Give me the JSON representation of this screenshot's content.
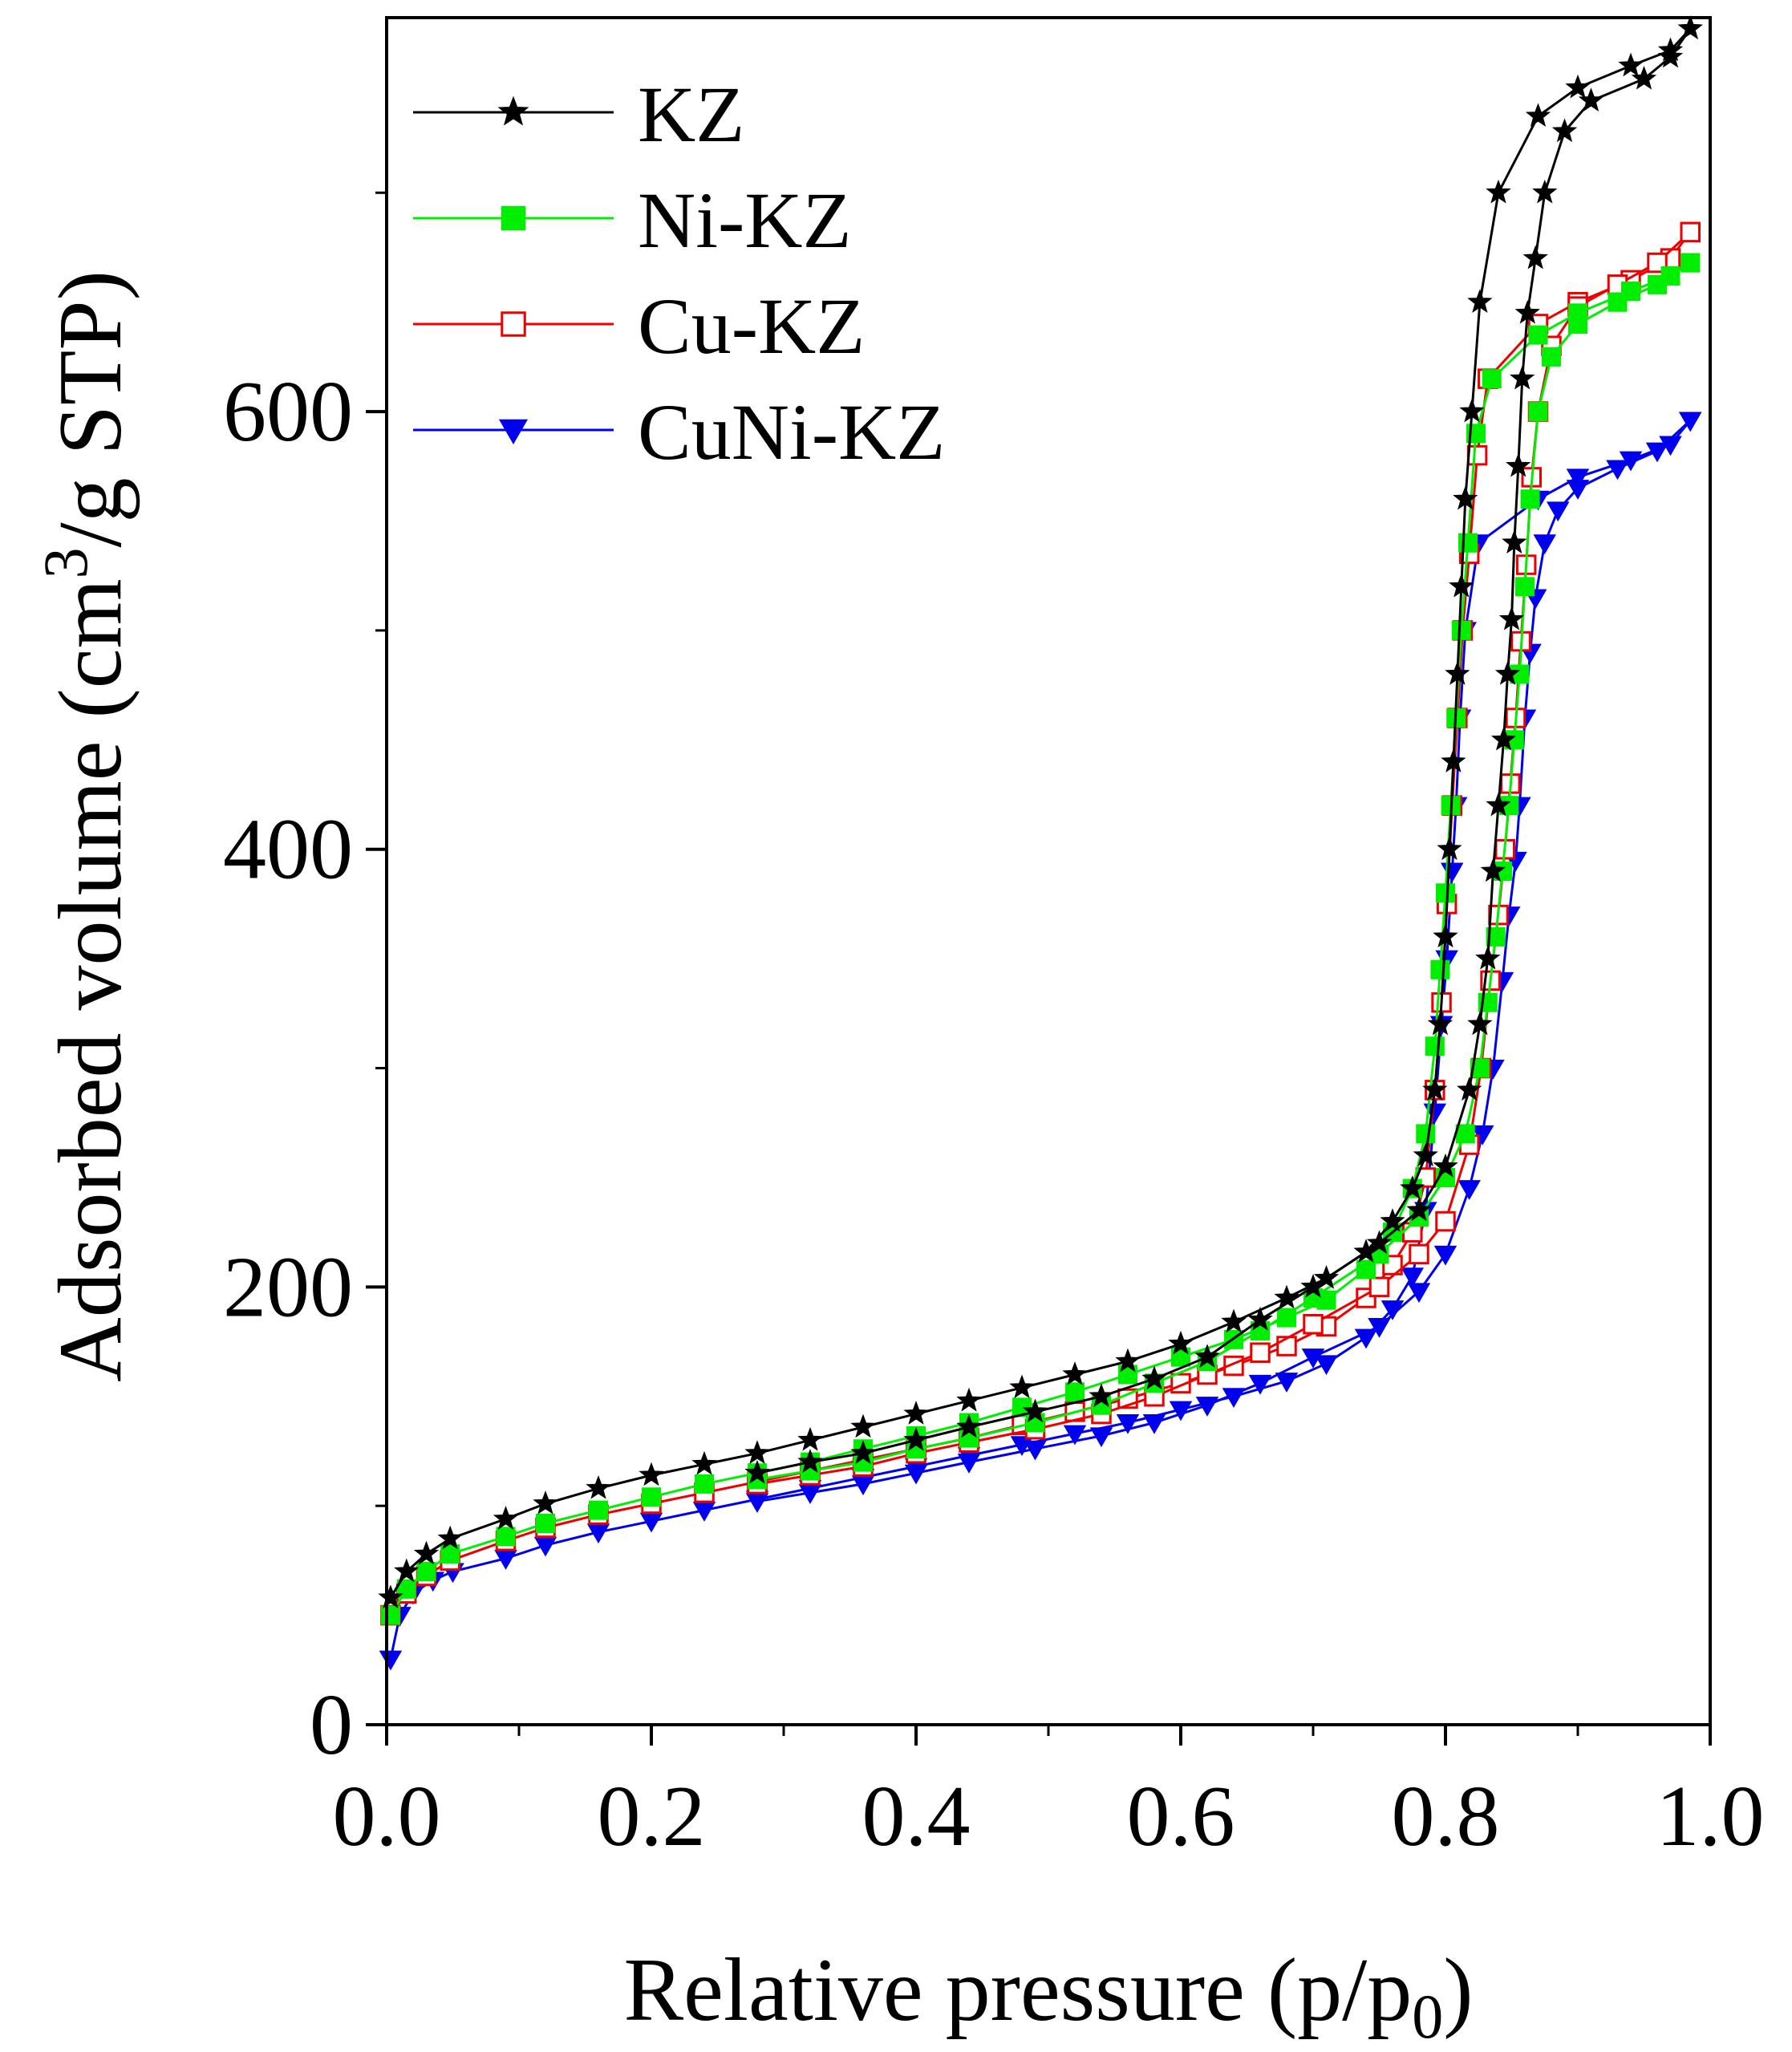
{
  "chart_data": {
    "type": "line",
    "title": "",
    "xlabel": {
      "main": "Relative pressure (p/p",
      "sub": "0",
      "end": ")"
    },
    "ylabel": {
      "main": "Adsorbed volume (cm",
      "sup": "3",
      "end": "/g STP)"
    },
    "xlim": [
      0.0,
      1.0
    ],
    "ylim": [
      0,
      780
    ],
    "x_ticks": [
      "0.0",
      "0.2",
      "0.4",
      "0.6",
      "0.8",
      "1.0"
    ],
    "y_ticks": [
      "0",
      "200",
      "400",
      "600"
    ],
    "legend_position": "top-left",
    "series": [
      {
        "name": "KZ",
        "color": "#000000",
        "marker": "star",
        "adsorption": [
          [
            0.003,
            58
          ],
          [
            0.015,
            70
          ],
          [
            0.03,
            78
          ],
          [
            0.048,
            85
          ],
          [
            0.09,
            94
          ],
          [
            0.12,
            101
          ],
          [
            0.16,
            108
          ],
          [
            0.2,
            114
          ],
          [
            0.24,
            119
          ],
          [
            0.28,
            124
          ],
          [
            0.32,
            130
          ],
          [
            0.36,
            136
          ],
          [
            0.4,
            142
          ],
          [
            0.44,
            148
          ],
          [
            0.48,
            154
          ],
          [
            0.52,
            160
          ],
          [
            0.56,
            166
          ],
          [
            0.6,
            174
          ],
          [
            0.64,
            184
          ],
          [
            0.68,
            195
          ],
          [
            0.71,
            204
          ],
          [
            0.74,
            216
          ],
          [
            0.76,
            230
          ],
          [
            0.775,
            245
          ],
          [
            0.785,
            260
          ],
          [
            0.792,
            290
          ],
          [
            0.796,
            320
          ],
          [
            0.8,
            360
          ],
          [
            0.803,
            400
          ],
          [
            0.806,
            440
          ],
          [
            0.809,
            480
          ],
          [
            0.812,
            520
          ],
          [
            0.815,
            560
          ],
          [
            0.82,
            600
          ],
          [
            0.826,
            650
          ],
          [
            0.84,
            700
          ],
          [
            0.87,
            735
          ],
          [
            0.9,
            748
          ],
          [
            0.94,
            758
          ],
          [
            0.97,
            765
          ],
          [
            0.985,
            775
          ]
        ],
        "desorption": [
          [
            0.985,
            775
          ],
          [
            0.97,
            762
          ],
          [
            0.95,
            752
          ],
          [
            0.91,
            742
          ],
          [
            0.89,
            728
          ],
          [
            0.875,
            700
          ],
          [
            0.868,
            670
          ],
          [
            0.862,
            645
          ],
          [
            0.858,
            615
          ],
          [
            0.855,
            575
          ],
          [
            0.852,
            540
          ],
          [
            0.85,
            505
          ],
          [
            0.847,
            480
          ],
          [
            0.844,
            450
          ],
          [
            0.84,
            420
          ],
          [
            0.836,
            390
          ],
          [
            0.832,
            350
          ],
          [
            0.826,
            320
          ],
          [
            0.818,
            290
          ],
          [
            0.8,
            255
          ],
          [
            0.78,
            235
          ],
          [
            0.75,
            220
          ],
          [
            0.7,
            200
          ],
          [
            0.66,
            185
          ],
          [
            0.62,
            168
          ],
          [
            0.58,
            158
          ],
          [
            0.54,
            150
          ],
          [
            0.49,
            143
          ],
          [
            0.44,
            136
          ],
          [
            0.4,
            130
          ],
          [
            0.36,
            124
          ],
          [
            0.32,
            120
          ],
          [
            0.28,
            115
          ]
        ]
      },
      {
        "name": "Ni-KZ",
        "color": "#00ee00",
        "marker": "square-filled",
        "adsorption": [
          [
            0.003,
            50
          ],
          [
            0.015,
            62
          ],
          [
            0.03,
            70
          ],
          [
            0.048,
            78
          ],
          [
            0.09,
            86
          ],
          [
            0.12,
            92
          ],
          [
            0.16,
            98
          ],
          [
            0.2,
            104
          ],
          [
            0.24,
            110
          ],
          [
            0.28,
            115
          ],
          [
            0.32,
            120
          ],
          [
            0.36,
            126
          ],
          [
            0.4,
            132
          ],
          [
            0.44,
            138
          ],
          [
            0.48,
            145
          ],
          [
            0.52,
            152
          ],
          [
            0.56,
            160
          ],
          [
            0.6,
            168
          ],
          [
            0.64,
            176
          ],
          [
            0.68,
            186
          ],
          [
            0.71,
            194
          ],
          [
            0.74,
            208
          ],
          [
            0.76,
            225
          ],
          [
            0.775,
            245
          ],
          [
            0.785,
            270
          ],
          [
            0.792,
            310
          ],
          [
            0.796,
            345
          ],
          [
            0.8,
            380
          ],
          [
            0.804,
            420
          ],
          [
            0.808,
            460
          ],
          [
            0.812,
            500
          ],
          [
            0.817,
            540
          ],
          [
            0.823,
            590
          ],
          [
            0.835,
            615
          ],
          [
            0.87,
            635
          ],
          [
            0.9,
            645
          ],
          [
            0.94,
            655
          ],
          [
            0.97,
            662
          ],
          [
            0.985,
            668
          ]
        ],
        "desorption": [
          [
            0.985,
            668
          ],
          [
            0.96,
            658
          ],
          [
            0.93,
            650
          ],
          [
            0.9,
            640
          ],
          [
            0.88,
            625
          ],
          [
            0.87,
            600
          ],
          [
            0.864,
            560
          ],
          [
            0.86,
            520
          ],
          [
            0.856,
            480
          ],
          [
            0.852,
            450
          ],
          [
            0.848,
            420
          ],
          [
            0.843,
            390
          ],
          [
            0.838,
            360
          ],
          [
            0.832,
            330
          ],
          [
            0.826,
            300
          ],
          [
            0.815,
            270
          ],
          [
            0.8,
            250
          ],
          [
            0.78,
            232
          ],
          [
            0.75,
            215
          ],
          [
            0.7,
            195
          ],
          [
            0.66,
            180
          ],
          [
            0.62,
            166
          ],
          [
            0.58,
            156
          ],
          [
            0.54,
            146
          ],
          [
            0.49,
            138
          ],
          [
            0.44,
            131
          ],
          [
            0.4,
            126
          ],
          [
            0.36,
            120
          ],
          [
            0.32,
            116
          ],
          [
            0.28,
            112
          ]
        ]
      },
      {
        "name": "Cu-KZ",
        "color": "#ee0000",
        "marker": "square-open",
        "adsorption": [
          [
            0.003,
            50
          ],
          [
            0.015,
            60
          ],
          [
            0.03,
            68
          ],
          [
            0.048,
            75
          ],
          [
            0.09,
            84
          ],
          [
            0.12,
            90
          ],
          [
            0.16,
            96
          ],
          [
            0.2,
            101
          ],
          [
            0.24,
            106
          ],
          [
            0.28,
            111
          ],
          [
            0.32,
            116
          ],
          [
            0.36,
            121
          ],
          [
            0.4,
            126
          ],
          [
            0.44,
            131
          ],
          [
            0.48,
            137
          ],
          [
            0.52,
            143
          ],
          [
            0.56,
            149
          ],
          [
            0.6,
            156
          ],
          [
            0.64,
            164
          ],
          [
            0.68,
            173
          ],
          [
            0.71,
            182
          ],
          [
            0.74,
            195
          ],
          [
            0.76,
            210
          ],
          [
            0.775,
            225
          ],
          [
            0.785,
            250
          ],
          [
            0.792,
            290
          ],
          [
            0.797,
            330
          ],
          [
            0.801,
            375
          ],
          [
            0.805,
            420
          ],
          [
            0.809,
            460
          ],
          [
            0.813,
            500
          ],
          [
            0.818,
            535
          ],
          [
            0.824,
            580
          ],
          [
            0.832,
            615
          ],
          [
            0.87,
            640
          ],
          [
            0.9,
            650
          ],
          [
            0.94,
            660
          ],
          [
            0.97,
            670
          ],
          [
            0.985,
            682
          ]
        ],
        "desorption": [
          [
            0.985,
            682
          ],
          [
            0.96,
            668
          ],
          [
            0.93,
            658
          ],
          [
            0.9,
            648
          ],
          [
            0.88,
            630
          ],
          [
            0.87,
            600
          ],
          [
            0.865,
            570
          ],
          [
            0.861,
            530
          ],
          [
            0.857,
            495
          ],
          [
            0.853,
            460
          ],
          [
            0.849,
            430
          ],
          [
            0.845,
            400
          ],
          [
            0.84,
            370
          ],
          [
            0.834,
            340
          ],
          [
            0.827,
            300
          ],
          [
            0.818,
            265
          ],
          [
            0.8,
            230
          ],
          [
            0.78,
            215
          ],
          [
            0.75,
            200
          ],
          [
            0.7,
            183
          ],
          [
            0.66,
            170
          ],
          [
            0.62,
            160
          ],
          [
            0.58,
            150
          ],
          [
            0.54,
            142
          ],
          [
            0.49,
            135
          ],
          [
            0.44,
            129
          ],
          [
            0.4,
            124
          ],
          [
            0.36,
            118
          ],
          [
            0.32,
            114
          ],
          [
            0.28,
            110
          ]
        ]
      },
      {
        "name": "CuNi-KZ",
        "color": "#0000ee",
        "marker": "triangle-down",
        "adsorption": [
          [
            0.003,
            30
          ],
          [
            0.01,
            50
          ],
          [
            0.02,
            60
          ],
          [
            0.035,
            66
          ],
          [
            0.05,
            70
          ],
          [
            0.09,
            76
          ],
          [
            0.12,
            82
          ],
          [
            0.16,
            88
          ],
          [
            0.2,
            93
          ],
          [
            0.24,
            98
          ],
          [
            0.28,
            103
          ],
          [
            0.32,
            108
          ],
          [
            0.36,
            113
          ],
          [
            0.4,
            118
          ],
          [
            0.44,
            123
          ],
          [
            0.48,
            128
          ],
          [
            0.52,
            133
          ],
          [
            0.56,
            138
          ],
          [
            0.6,
            144
          ],
          [
            0.64,
            150
          ],
          [
            0.68,
            157
          ],
          [
            0.71,
            165
          ],
          [
            0.74,
            177
          ],
          [
            0.76,
            190
          ],
          [
            0.775,
            205
          ],
          [
            0.785,
            235
          ],
          [
            0.792,
            280
          ],
          [
            0.797,
            320
          ],
          [
            0.801,
            350
          ],
          [
            0.805,
            390
          ],
          [
            0.808,
            420
          ],
          [
            0.811,
            460
          ],
          [
            0.815,
            500
          ],
          [
            0.825,
            540
          ],
          [
            0.87,
            560
          ],
          [
            0.9,
            570
          ],
          [
            0.94,
            578
          ],
          [
            0.97,
            585
          ],
          [
            0.985,
            596
          ]
        ],
        "desorption": [
          [
            0.985,
            596
          ],
          [
            0.96,
            582
          ],
          [
            0.93,
            574
          ],
          [
            0.9,
            565
          ],
          [
            0.885,
            555
          ],
          [
            0.875,
            540
          ],
          [
            0.868,
            515
          ],
          [
            0.864,
            490
          ],
          [
            0.86,
            460
          ],
          [
            0.856,
            420
          ],
          [
            0.853,
            395
          ],
          [
            0.848,
            370
          ],
          [
            0.843,
            340
          ],
          [
            0.836,
            300
          ],
          [
            0.828,
            270
          ],
          [
            0.818,
            245
          ],
          [
            0.8,
            215
          ],
          [
            0.78,
            198
          ],
          [
            0.75,
            182
          ],
          [
            0.7,
            168
          ],
          [
            0.66,
            156
          ],
          [
            0.62,
            146
          ],
          [
            0.58,
            138
          ],
          [
            0.54,
            132
          ],
          [
            0.49,
            126
          ],
          [
            0.44,
            120
          ],
          [
            0.4,
            115
          ],
          [
            0.36,
            110
          ],
          [
            0.32,
            106
          ],
          [
            0.28,
            102
          ]
        ]
      }
    ]
  }
}
